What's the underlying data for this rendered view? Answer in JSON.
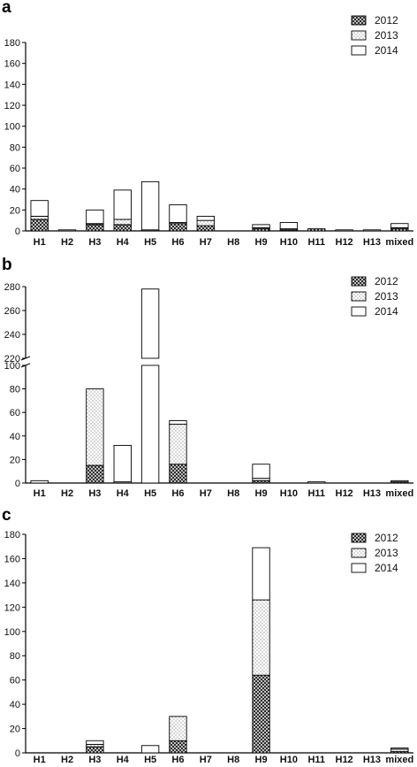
{
  "chart_data": [
    {
      "type": "bar",
      "stacked": true,
      "panel_label": "a",
      "categories": [
        "H1",
        "H2",
        "H3",
        "H4",
        "H5",
        "H6",
        "H7",
        "H8",
        "H9",
        "H10",
        "H11",
        "H12",
        "H13",
        "mixed"
      ],
      "series": [
        {
          "name": "2012",
          "pattern": "crosshatch",
          "values": [
            11,
            0,
            6,
            6,
            0,
            7,
            5,
            0,
            2,
            1,
            2,
            0,
            0,
            2
          ]
        },
        {
          "name": "2013",
          "pattern": "dotted",
          "values": [
            3,
            0,
            1,
            5,
            1,
            1,
            5,
            0,
            1,
            1,
            0,
            0,
            0,
            1
          ]
        },
        {
          "name": "2014",
          "pattern": "empty",
          "values": [
            15,
            1,
            13,
            28,
            46,
            17,
            4,
            0,
            3,
            6,
            0,
            1,
            1,
            4
          ]
        }
      ],
      "ylim": [
        0,
        180
      ],
      "yticks": [
        0,
        20,
        40,
        60,
        80,
        100,
        120,
        140,
        160,
        180
      ],
      "legend": "top-right"
    },
    {
      "type": "bar",
      "stacked": true,
      "panel_label": "b",
      "broken_axis": true,
      "categories": [
        "H1",
        "H2",
        "H3",
        "H4",
        "H5",
        "H6",
        "H7",
        "H8",
        "H9",
        "H10",
        "H11",
        "H12",
        "H13",
        "mixed"
      ],
      "series": [
        {
          "name": "2012",
          "pattern": "crosshatch",
          "values": [
            0,
            0,
            15,
            0,
            0,
            16,
            0,
            0,
            2,
            0,
            0,
            0,
            0,
            1
          ]
        },
        {
          "name": "2013",
          "pattern": "dotted",
          "values": [
            0,
            0,
            65,
            1,
            0,
            34,
            0,
            0,
            2,
            0,
            0,
            0,
            0,
            0
          ]
        },
        {
          "name": "2014",
          "pattern": "empty",
          "values": [
            2,
            0,
            0,
            31,
            278,
            3,
            0,
            0,
            12,
            0,
            1,
            0,
            0,
            1
          ]
        }
      ],
      "ylim_lower": [
        0,
        100
      ],
      "ylim_upper": [
        220,
        280
      ],
      "yticks_lower": [
        0,
        20,
        40,
        60,
        80,
        100
      ],
      "yticks_upper": [
        220,
        240,
        260,
        280
      ],
      "legend": "top-right"
    },
    {
      "type": "bar",
      "stacked": true,
      "panel_label": "c",
      "categories": [
        "H1",
        "H2",
        "H3",
        "H4",
        "H5",
        "H6",
        "H7",
        "H8",
        "H9",
        "H10",
        "H11",
        "H12",
        "H13",
        "mixed"
      ],
      "series": [
        {
          "name": "2012",
          "pattern": "crosshatch",
          "values": [
            0,
            0,
            5,
            0,
            0,
            10,
            0,
            0,
            64,
            0,
            0,
            0,
            0,
            1
          ]
        },
        {
          "name": "2013",
          "pattern": "dotted",
          "values": [
            0,
            0,
            2,
            0,
            0,
            20,
            0,
            0,
            62,
            0,
            0,
            0,
            0,
            2
          ]
        },
        {
          "name": "2014",
          "pattern": "empty",
          "values": [
            0,
            0,
            3,
            0,
            6,
            0,
            0,
            0,
            43,
            0,
            0,
            0,
            0,
            1
          ]
        }
      ],
      "ylim": [
        0,
        180
      ],
      "yticks": [
        0,
        20,
        40,
        60,
        80,
        100,
        120,
        140,
        160,
        180
      ],
      "legend": "top-right"
    }
  ]
}
